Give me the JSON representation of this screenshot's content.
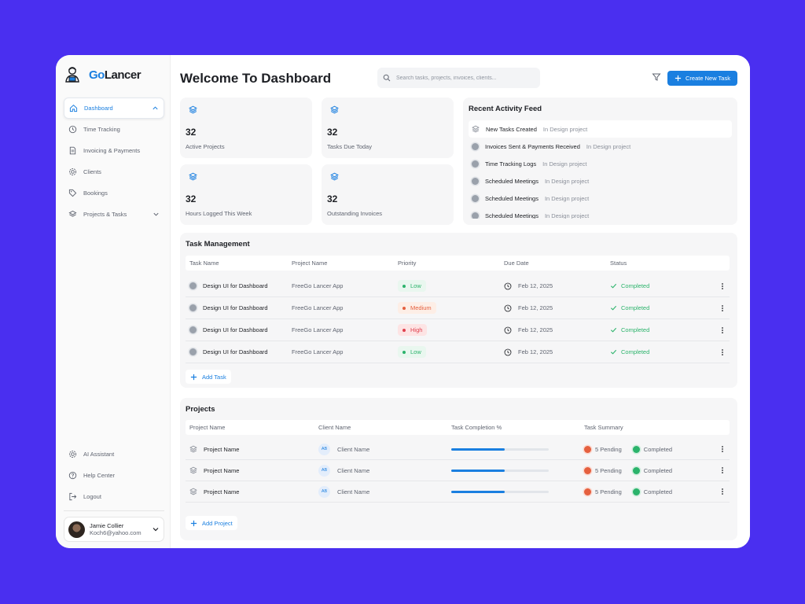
{
  "brand": {
    "go": "Go",
    "lancer": "Lancer"
  },
  "sidebar": {
    "items": [
      {
        "label": "Dashboard",
        "icon": "home-icon"
      },
      {
        "label": "Time Tracking",
        "icon": "clock-icon"
      },
      {
        "label": "Invoicing & Payments",
        "icon": "document-icon"
      },
      {
        "label": "Clients",
        "icon": "gear-icon"
      },
      {
        "label": "Bookings",
        "icon": "tag-icon"
      },
      {
        "label": "Projects & Tasks",
        "icon": "layers-icon"
      }
    ],
    "bottom_items": [
      {
        "label": "AI Assistant",
        "icon": "gear-icon"
      },
      {
        "label": "Help Center",
        "icon": "help-icon"
      },
      {
        "label": "Logout",
        "icon": "logout-icon"
      }
    ],
    "user": {
      "name": "Jamie Collier",
      "email": "Koch6@yahoo.com"
    }
  },
  "header": {
    "title": "Welcome To Dashboard",
    "search_placeholder": "Search tasks, projects, invoices, clients...",
    "create_label": "Create New Task"
  },
  "stats": [
    {
      "value": "32",
      "label": "Active Projects"
    },
    {
      "value": "32",
      "label": "Tasks Due Today"
    },
    {
      "value": "32",
      "label": "Hours Logged This Week"
    },
    {
      "value": "32",
      "label": "Outstanding Invoices"
    }
  ],
  "feed": {
    "title": "Recent Activity Feed",
    "items": [
      {
        "event": "New Tasks Created",
        "context": "In Design project"
      },
      {
        "event": "Invoices Sent & Payments Received",
        "context": "In Design project"
      },
      {
        "event": "Time Tracking Logs",
        "context": "In Design project"
      },
      {
        "event": "Scheduled Meetings",
        "context": "In Design project"
      },
      {
        "event": "Scheduled Meetings",
        "context": "In Design project"
      },
      {
        "event": "Scheduled Meetings",
        "context": "In Design project"
      }
    ]
  },
  "tasks": {
    "title": "Task Management",
    "columns": [
      "Task Name",
      "Project Name",
      "Priority",
      "Due Date",
      "Status"
    ],
    "rows": [
      {
        "name": "Design UI for Dashboard",
        "project": "FreeGo Lancer App",
        "priority": "Low",
        "due": "Feb 12, 2025",
        "status": "Completed"
      },
      {
        "name": "Design UI for Dashboard",
        "project": "FreeGo Lancer App",
        "priority": "Medium",
        "due": "Feb 12, 2025",
        "status": "Completed"
      },
      {
        "name": "Design UI for Dashboard",
        "project": "FreeGo Lancer App",
        "priority": "High",
        "due": "Feb 12, 2025",
        "status": "Completed"
      },
      {
        "name": "Design UI for Dashboard",
        "project": "FreeGo Lancer App",
        "priority": "Low",
        "due": "Feb 12, 2025",
        "status": "Completed"
      }
    ],
    "add_label": "Add Task"
  },
  "priority_colors": {
    "Low": {
      "bg": "#e9f7ef",
      "fg": "#2bb36b"
    },
    "Medium": {
      "bg": "#fdeee6",
      "fg": "#e5603f"
    },
    "High": {
      "bg": "#fde4e4",
      "fg": "#e0414f"
    }
  },
  "projects": {
    "title": "Projects",
    "columns": [
      "Project Name",
      "Client Name",
      "Task Completion %",
      "Task Summary"
    ],
    "rows": [
      {
        "name": "Project Name",
        "initials": "AB",
        "client": "Client Name",
        "completion": 0.55,
        "pending": "5 Pending",
        "completed": "Completed"
      },
      {
        "name": "Project Name",
        "initials": "AB",
        "client": "Client Name",
        "completion": 0.55,
        "pending": "5 Pending",
        "completed": "Completed"
      },
      {
        "name": "Project Name",
        "initials": "AB",
        "client": "Client Name",
        "completion": 0.55,
        "pending": "5 Pending",
        "completed": "Completed"
      }
    ],
    "add_label": "Add Project"
  },
  "colors": {
    "accent": "#1a7fe0",
    "background": "#4a2ff0",
    "success": "#2bb36b",
    "warning": "#e5603f",
    "danger": "#e0414f"
  }
}
